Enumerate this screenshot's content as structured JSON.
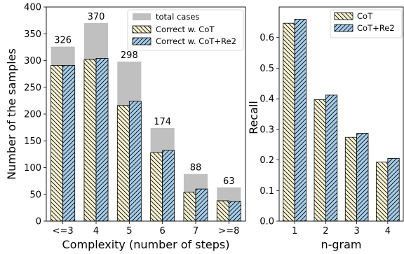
{
  "chart_data": [
    {
      "type": "bar",
      "xlabel": "Complexity (number of steps)",
      "ylabel": "Number of the samples",
      "categories": [
        "<=3",
        "4",
        "5",
        "6",
        "7",
        ">=8"
      ],
      "ylim": [
        0,
        400
      ],
      "yticks": [
        0,
        50,
        100,
        150,
        200,
        250,
        300,
        350,
        400
      ],
      "legend_position": "top-right",
      "grid": false,
      "background_series": {
        "name": "total cases",
        "values": [
          326,
          370,
          298,
          174,
          88,
          63
        ],
        "color": "#c0c0c0"
      },
      "data_labels": [
        "326",
        "370",
        "298",
        "174",
        "88",
        "63"
      ],
      "series": [
        {
          "name": "Correct w. CoT",
          "values": [
            291,
            302,
            216,
            128,
            54,
            38
          ],
          "color": "#f7f3d3",
          "hatch": "back"
        },
        {
          "name": "Correct w. CoT+Re2",
          "values": [
            291,
            304,
            224,
            132,
            60,
            37
          ],
          "color": "#a6cde9",
          "hatch": "forward"
        }
      ]
    },
    {
      "type": "bar",
      "xlabel": "n-gram",
      "ylabel": "Recall",
      "categories": [
        "1",
        "2",
        "3",
        "4"
      ],
      "ylim": [
        0,
        0.7
      ],
      "yticks": [
        "0.0",
        "0.1",
        "0.2",
        "0.3",
        "0.4",
        "0.5",
        "0.6"
      ],
      "legend_position": "top-right",
      "grid": false,
      "series": [
        {
          "name": "CoT",
          "values": [
            0.647,
            0.397,
            0.274,
            0.193
          ],
          "color": "#f7f3d3",
          "hatch": "back"
        },
        {
          "name": "CoT+Re2",
          "values": [
            0.66,
            0.412,
            0.287,
            0.205
          ],
          "color": "#a6cde9",
          "hatch": "forward"
        }
      ]
    }
  ]
}
